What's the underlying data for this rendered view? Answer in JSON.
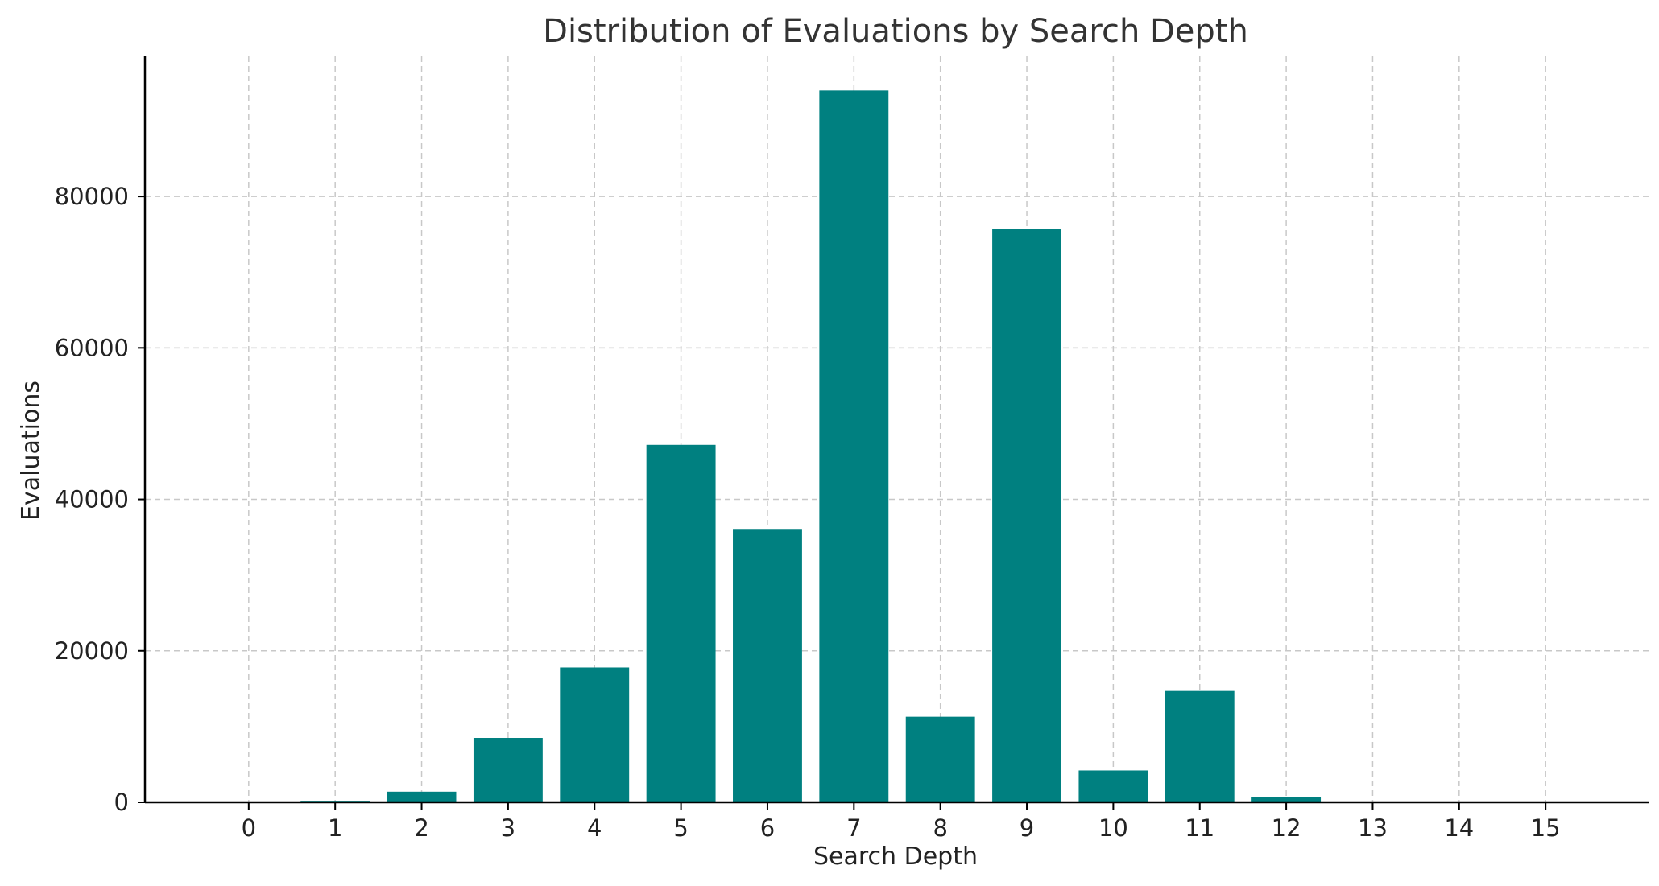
{
  "chart_data": {
    "type": "bar",
    "title": "Distribution of Evaluations by Search Depth",
    "xlabel": "Search Depth",
    "ylabel": "Evaluations",
    "categories": [
      "0",
      "1",
      "2",
      "3",
      "4",
      "5",
      "6",
      "7",
      "8",
      "9",
      "10",
      "11",
      "12",
      "13",
      "14",
      "15"
    ],
    "values": [
      0,
      200,
      1400,
      8500,
      17800,
      47200,
      36100,
      94000,
      11300,
      75700,
      4200,
      14700,
      700,
      0,
      0,
      0
    ],
    "yticks": [
      0,
      20000,
      40000,
      60000,
      80000
    ],
    "ylim": [
      0,
      98500
    ],
    "xlim": [
      -1.2,
      16.2
    ],
    "grid": true,
    "bar_color": "#008080"
  }
}
